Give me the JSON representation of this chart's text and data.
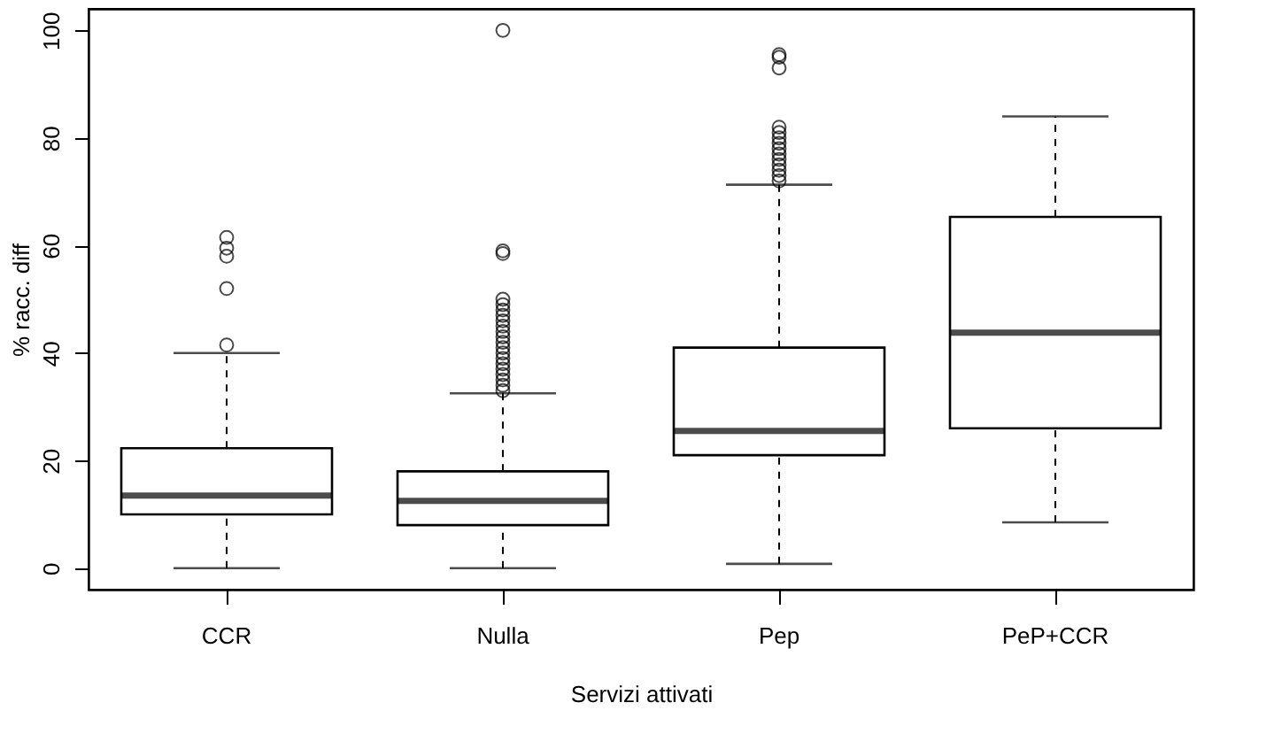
{
  "chart_data": {
    "type": "box",
    "xlabel": "Servizi attivati",
    "ylabel": "% racc. diff",
    "categories": [
      "CCR",
      "Nulla",
      "Pep",
      "PeP+CCR"
    ],
    "ylim": [
      -4,
      104
    ],
    "yticks": [
      0,
      20,
      40,
      60,
      80,
      100
    ],
    "grid": false,
    "color": "#ffffff",
    "boxes": [
      {
        "low": 0,
        "q1": 10,
        "median": 13.5,
        "q3": 22.3,
        "high": 40,
        "outliers": [
          41.5,
          52,
          58,
          59.5,
          61.5
        ]
      },
      {
        "low": 0,
        "q1": 8,
        "median": 12.5,
        "q3": 18,
        "high": 32.5,
        "outliers": [
          33,
          34,
          35,
          36,
          37,
          38,
          39,
          40,
          41,
          42,
          43,
          44,
          45,
          46,
          47,
          48,
          49,
          50,
          58.5,
          59,
          100
        ]
      },
      {
        "low": 0.8,
        "q1": 21,
        "median": 25.5,
        "q3": 41,
        "high": 71.3,
        "outliers": [
          72,
          73,
          74,
          75,
          76,
          77,
          78,
          79,
          80,
          81,
          82,
          93,
          95,
          95.5
        ]
      },
      {
        "low": 8.5,
        "q1": 26,
        "median": 43.8,
        "q3": 65.3,
        "high": 84
      }
    ]
  }
}
